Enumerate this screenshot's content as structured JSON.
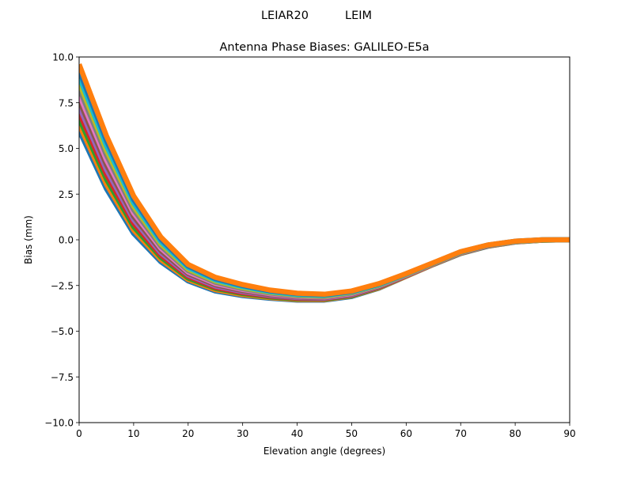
{
  "chart_data": {
    "type": "line",
    "suptitle": "LEIAR20          LEIM",
    "title": "Antenna Phase Biases: GALILEO-E5a",
    "xlabel": "Elevation angle (degrees)",
    "ylabel": "Bias (mm)",
    "xlim": [
      0,
      90
    ],
    "ylim": [
      -10,
      10
    ],
    "xticks": [
      0,
      10,
      20,
      30,
      40,
      50,
      60,
      70,
      80,
      90
    ],
    "yticks": [
      -10,
      -7.5,
      -5,
      -2.5,
      0,
      2.5,
      5,
      7.5,
      10
    ],
    "ytick_labels": [
      "−10.0",
      "−7.5",
      "−5.0",
      "−2.5",
      "0.0",
      "2.5",
      "5.0",
      "7.5",
      "10.0"
    ],
    "grid": false,
    "legend": "none",
    "colors": [
      "#1f77b4",
      "#ff7f0e",
      "#2ca02c",
      "#d62728",
      "#9467bd",
      "#8c564b",
      "#e377c2",
      "#7f7f7f",
      "#bcbd22",
      "#17becf"
    ],
    "x": [
      0,
      5,
      10,
      15,
      20,
      25,
      30,
      35,
      40,
      45,
      50,
      55,
      60,
      65,
      70,
      75,
      80,
      85,
      90
    ],
    "series": [
      {
        "values": [
          6.0,
          2.8,
          0.35,
          -1.2,
          -2.25,
          -2.8,
          -3.05,
          -3.2,
          -3.3,
          -3.3,
          -3.1,
          -2.65,
          -2.0,
          -1.35,
          -0.75,
          -0.35,
          -0.12,
          -0.02,
          0
        ]
      },
      {
        "values": [
          6.33,
          3.06,
          0.54,
          -1.08,
          -2.17,
          -2.73,
          -3.0,
          -3.16,
          -3.27,
          -3.27,
          -3.07,
          -2.63,
          -1.99,
          -1.34,
          -0.74,
          -0.34,
          -0.12,
          -0.02,
          0
        ]
      },
      {
        "values": [
          6.65,
          3.33,
          0.72,
          -0.95,
          -2.09,
          -2.66,
          -2.94,
          -3.12,
          -3.23,
          -3.24,
          -3.05,
          -2.6,
          -1.97,
          -1.33,
          -0.73,
          -0.34,
          -0.11,
          -0.02,
          0
        ]
      },
      {
        "values": [
          6.98,
          3.59,
          0.91,
          -0.83,
          -2.0,
          -2.6,
          -2.89,
          -3.08,
          -3.2,
          -3.21,
          -3.02,
          -2.58,
          -1.96,
          -1.32,
          -0.72,
          -0.33,
          -0.11,
          -0.01,
          0
        ]
      },
      {
        "values": [
          7.31,
          3.85,
          1.1,
          -0.71,
          -1.92,
          -2.53,
          -2.83,
          -3.04,
          -3.16,
          -3.18,
          -2.99,
          -2.56,
          -1.95,
          -1.31,
          -0.71,
          -0.32,
          -0.11,
          -0.01,
          0
        ]
      },
      {
        "values": [
          7.64,
          4.12,
          1.28,
          -0.59,
          -1.84,
          -2.46,
          -2.78,
          -2.99,
          -3.13,
          -3.15,
          -2.96,
          -2.54,
          -1.93,
          -1.3,
          -0.7,
          -0.32,
          -0.1,
          -0.01,
          0
        ]
      },
      {
        "values": [
          7.96,
          4.38,
          1.47,
          -0.46,
          -1.76,
          -2.39,
          -2.72,
          -2.95,
          -3.09,
          -3.13,
          -2.94,
          -2.51,
          -1.92,
          -1.3,
          -0.7,
          -0.31,
          -0.1,
          -0.01,
          0
        ]
      },
      {
        "values": [
          8.29,
          4.65,
          1.65,
          -0.34,
          -1.68,
          -2.32,
          -2.67,
          -2.91,
          -3.06,
          -3.1,
          -2.91,
          -2.49,
          -1.9,
          -1.29,
          -0.69,
          -0.3,
          -0.1,
          -0.01,
          0
        ]
      },
      {
        "values": [
          8.62,
          4.91,
          1.84,
          -0.22,
          -1.6,
          -2.25,
          -2.61,
          -2.87,
          -3.02,
          -3.07,
          -2.88,
          -2.47,
          -1.89,
          -1.28,
          -0.68,
          -0.3,
          -0.09,
          -0.01,
          0
        ]
      },
      {
        "values": [
          8.95,
          5.17,
          2.03,
          -0.1,
          -1.51,
          -2.19,
          -2.56,
          -2.83,
          -2.99,
          -3.04,
          -2.85,
          -2.45,
          -1.88,
          -1.27,
          -0.67,
          -0.29,
          -0.09,
          0,
          0
        ]
      },
      {
        "values": [
          9.27,
          5.44,
          2.21,
          0.03,
          -1.43,
          -2.12,
          -2.5,
          -2.79,
          -2.95,
          -3.01,
          -2.83,
          -2.42,
          -1.86,
          -1.26,
          -0.66,
          -0.29,
          -0.08,
          0,
          0
        ]
      },
      {
        "values": [
          9.6,
          5.7,
          2.4,
          0.15,
          -1.35,
          -2.05,
          -2.45,
          -2.75,
          -2.92,
          -2.98,
          -2.8,
          -2.4,
          -1.85,
          -1.25,
          -0.65,
          -0.28,
          -0.08,
          0,
          0
        ]
      }
    ]
  }
}
